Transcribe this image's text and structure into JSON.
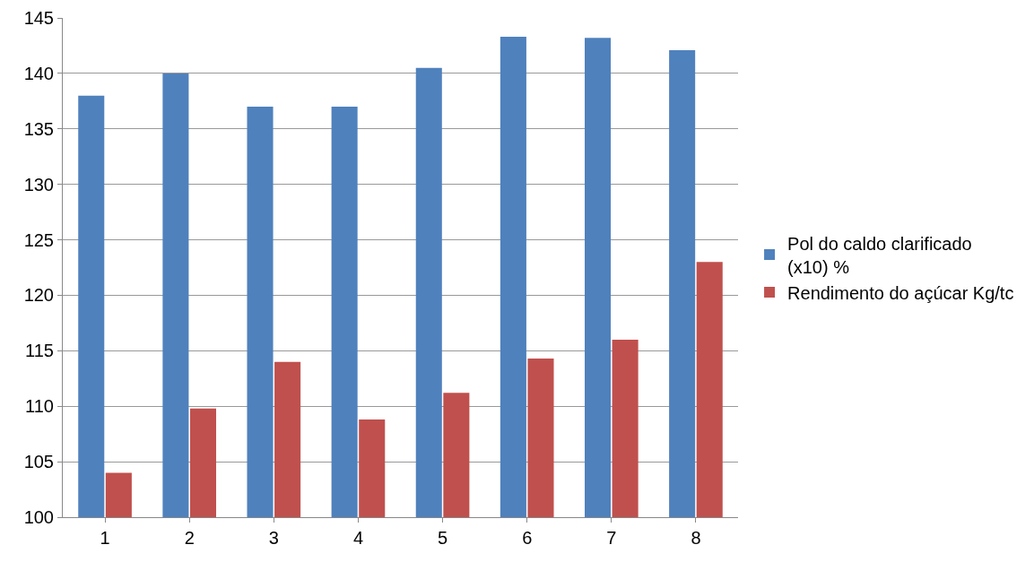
{
  "chart_data": {
    "type": "bar",
    "categories": [
      "1",
      "2",
      "3",
      "4",
      "5",
      "6",
      "7",
      "8"
    ],
    "series": [
      {
        "name": "Pol do caldo clarificado (x10) %",
        "color": "#4f81bd",
        "values": [
          138,
          140,
          137,
          137,
          140.5,
          143.3,
          143.2,
          142.1
        ]
      },
      {
        "name": "Rendimento do açúcar Kg/tc",
        "color": "#c0504d",
        "values": [
          104,
          109.8,
          114,
          108.8,
          111.2,
          114.3,
          116,
          123
        ]
      }
    ],
    "ylim": [
      100,
      145
    ],
    "yticks": [
      100,
      105,
      110,
      115,
      120,
      125,
      130,
      135,
      140,
      145
    ],
    "grid": "y",
    "legend": "right"
  }
}
